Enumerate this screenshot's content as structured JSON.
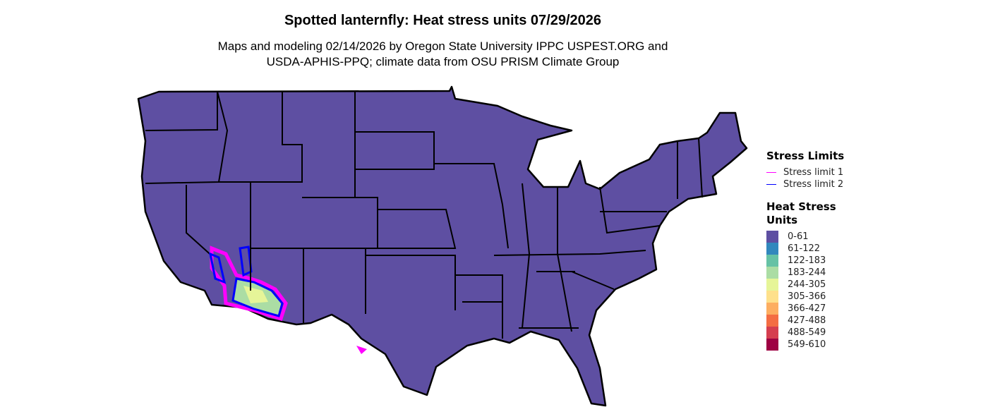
{
  "title": "Spotted lanternfly: Heat stress units 07/29/2026",
  "subtitle_line1": "Maps and modeling 02/14/2026 by Oregon State University IPPC USPEST.ORG and",
  "subtitle_line2": "USDA-APHIS-PPQ; climate data from OSU PRISM Climate Group",
  "map": {
    "base_color": "#5E4FA2",
    "border_color": "#000000"
  },
  "legend": {
    "stress_title": "Stress Limits",
    "stress_limits": [
      {
        "label": "Stress limit 1",
        "color": "#FF00FF"
      },
      {
        "label": "Stress limit 2",
        "color": "#0000FF"
      }
    ],
    "heat_title": "Heat Stress Units",
    "classes": [
      {
        "label": "0-61",
        "color": "#5E4FA2"
      },
      {
        "label": "61-122",
        "color": "#3288BD"
      },
      {
        "label": "122-183",
        "color": "#66C2A5"
      },
      {
        "label": "183-244",
        "color": "#ABDDA4"
      },
      {
        "label": "244-305",
        "color": "#E6F598"
      },
      {
        "label": "305-366",
        "color": "#FEE08B"
      },
      {
        "label": "366-427",
        "color": "#FDAE61"
      },
      {
        "label": "427-488",
        "color": "#F46D43"
      },
      {
        "label": "488-549",
        "color": "#D53E4F"
      },
      {
        "label": "549-610",
        "color": "#9E0142"
      }
    ]
  }
}
